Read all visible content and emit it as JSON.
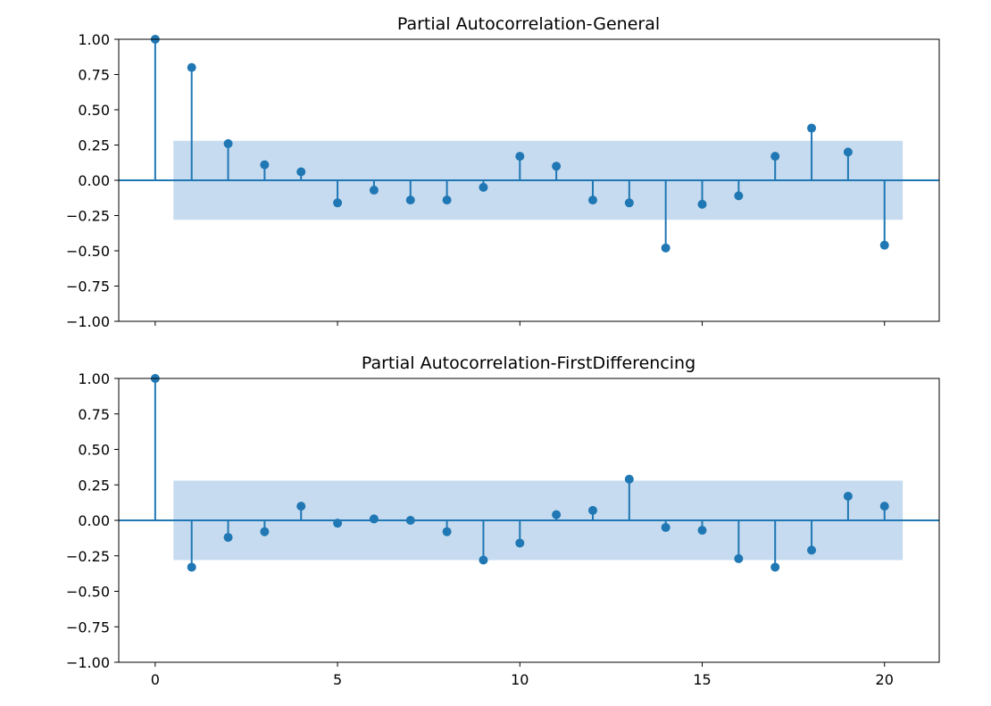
{
  "colors": {
    "series": "#1f77b4",
    "confidence_band": "#c6dbef",
    "axes": "#000000"
  },
  "chart_data": [
    {
      "type": "stem",
      "title": "Partial Autocorrelation-General",
      "xlabel": "",
      "ylabel": "",
      "x": [
        0,
        1,
        2,
        3,
        4,
        5,
        6,
        7,
        8,
        9,
        10,
        11,
        12,
        13,
        14,
        15,
        16,
        17,
        18,
        19,
        20
      ],
      "values": [
        1.0,
        0.8,
        0.26,
        0.11,
        0.06,
        -0.16,
        -0.07,
        -0.14,
        -0.14,
        -0.05,
        0.17,
        0.1,
        -0.14,
        -0.16,
        -0.48,
        -0.17,
        -0.11,
        0.17,
        0.37,
        0.2,
        -0.46
      ],
      "confidence_band": {
        "x_range": [
          0.5,
          20.5
        ],
        "lower": -0.28,
        "upper": 0.28
      },
      "xlim": [
        -1,
        21.5
      ],
      "ylim": [
        -1.0,
        1.0
      ],
      "y_ticks": [
        "1.00",
        "0.75",
        "0.50",
        "0.25",
        "0.00",
        "−0.25",
        "−0.50",
        "−0.75",
        "−1.00"
      ],
      "y_tick_values": [
        1.0,
        0.75,
        0.5,
        0.25,
        0.0,
        -0.25,
        -0.5,
        -0.75,
        -1.0
      ],
      "x_ticks": [],
      "x_tick_values": [
        0,
        5,
        10,
        15,
        20
      ],
      "grid": false
    },
    {
      "type": "stem",
      "title": "Partial Autocorrelation-FirstDifferencing",
      "xlabel": "",
      "ylabel": "",
      "x": [
        0,
        1,
        2,
        3,
        4,
        5,
        6,
        7,
        8,
        9,
        10,
        11,
        12,
        13,
        14,
        15,
        16,
        17,
        18,
        19,
        20
      ],
      "values": [
        1.0,
        -0.33,
        -0.12,
        -0.08,
        0.1,
        -0.02,
        0.01,
        0.0,
        -0.08,
        -0.28,
        -0.16,
        0.04,
        0.07,
        0.29,
        -0.05,
        -0.07,
        -0.27,
        -0.33,
        -0.21,
        0.17,
        0.1
      ],
      "confidence_band": {
        "x_range": [
          0.5,
          20.5
        ],
        "lower": -0.28,
        "upper": 0.28
      },
      "xlim": [
        -1,
        21.5
      ],
      "ylim": [
        -1.0,
        1.0
      ],
      "y_ticks": [
        "1.00",
        "0.75",
        "0.50",
        "0.25",
        "0.00",
        "−0.25",
        "−0.50",
        "−0.75",
        "−1.00"
      ],
      "y_tick_values": [
        1.0,
        0.75,
        0.5,
        0.25,
        0.0,
        -0.25,
        -0.5,
        -0.75,
        -1.0
      ],
      "x_ticks": [
        "0",
        "5",
        "10",
        "15",
        "20"
      ],
      "x_tick_values": [
        0,
        5,
        10,
        15,
        20
      ],
      "grid": false
    }
  ]
}
